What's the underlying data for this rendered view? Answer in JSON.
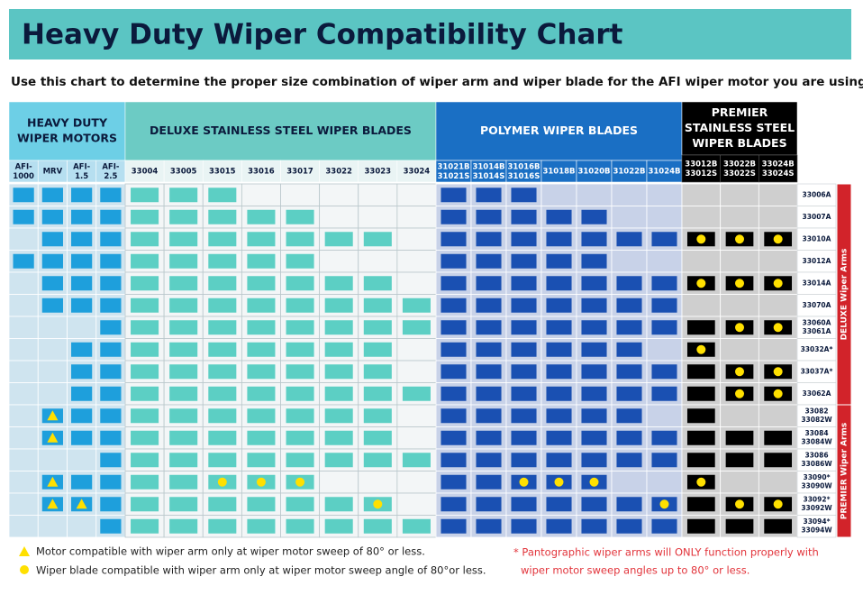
{
  "header": {
    "title": "Heavy Duty Wiper Compatibility Chart",
    "subtitle": "Use this chart to determine the proper size combination of wiper arm and wiper blade for the AFI  wiper motor you are using"
  },
  "table": {
    "groups": [
      {
        "label": [
          "HEAVY DUTY",
          "WIPER MOTORS"
        ],
        "columns": [
          [
            "AFI-",
            "1000"
          ],
          [
            "MRV"
          ],
          [
            "AFI-",
            "1.5"
          ],
          [
            "AFI-",
            "2.5"
          ]
        ]
      },
      {
        "label": [
          "DELUXE STAINLESS STEEL WIPER BLADES"
        ],
        "columns": [
          [
            "33004"
          ],
          [
            "33005"
          ],
          [
            "33015"
          ],
          [
            "33016"
          ],
          [
            "33017"
          ],
          [
            "33022"
          ],
          [
            "33023"
          ],
          [
            "33024"
          ]
        ]
      },
      {
        "label": [
          "POLYMER WIPER BLADES"
        ],
        "columns": [
          [
            "31021B",
            "31021S"
          ],
          [
            "31014B",
            "31014S"
          ],
          [
            "31016B",
            "31016S"
          ],
          [
            "31018B"
          ],
          [
            "31020B"
          ],
          [
            "31022B"
          ],
          [
            "31024B"
          ]
        ]
      },
      {
        "label": [
          "PREMIER",
          "STAINLESS STEEL",
          "WIPER BLADES"
        ],
        "columns": [
          [
            "33012B",
            "33012S"
          ],
          [
            "33022B",
            "33022S"
          ],
          [
            "33024B",
            "33024S"
          ]
        ]
      }
    ],
    "sections": [
      {
        "label": "DELUXE Wiper Arms",
        "rows": [
          {
            "arm": [
              "33006A"
            ],
            "cells": [
              "1111",
              "11100000",
              "1110000",
              "000"
            ]
          },
          {
            "arm": [
              "33007A"
            ],
            "cells": [
              "1111",
              "11111000",
              "1111100",
              "000"
            ]
          },
          {
            "arm": [
              "33010A"
            ],
            "cells": [
              "0111",
              "11111110",
              "1111111",
              "ccc"
            ]
          },
          {
            "arm": [
              "33012A"
            ],
            "cells": [
              "1111",
              "11111000",
              "1111100",
              "000"
            ]
          },
          {
            "arm": [
              "33014A"
            ],
            "cells": [
              "0111",
              "11111110",
              "1111111",
              "ccc"
            ]
          },
          {
            "arm": [
              "33070A"
            ],
            "cells": [
              "0111",
              "11111111",
              "1111111",
              "000"
            ]
          },
          {
            "arm": [
              "33060A",
              "33061A"
            ],
            "cells": [
              "0001",
              "11111111",
              "1111111",
              "1cc"
            ]
          },
          {
            "arm": [
              "33032A*"
            ],
            "cells": [
              "0011",
              "11111110",
              "1111110",
              "c00"
            ]
          },
          {
            "arm": [
              "33037A*"
            ],
            "cells": [
              "0011",
              "11111110",
              "1111111",
              "1cc"
            ]
          },
          {
            "arm": [
              "33062A"
            ],
            "cells": [
              "0011",
              "11111111",
              "1111111",
              "1cc"
            ]
          }
        ]
      },
      {
        "label": "PREMIER Wiper Arms",
        "rows": [
          {
            "arm": [
              "33082",
              "33082W"
            ],
            "cells": [
              "0t11",
              "11111110",
              "1111110",
              "100"
            ]
          },
          {
            "arm": [
              "33084",
              "33084W"
            ],
            "cells": [
              "0t11",
              "11111110",
              "1111111",
              "111"
            ]
          },
          {
            "arm": [
              "33086",
              "33086W"
            ],
            "cells": [
              "0001",
              "11111111",
              "1111111",
              "111"
            ]
          },
          {
            "arm": [
              "33090*",
              "33090W"
            ],
            "cells": [
              "0t11",
              "11ccc000",
              "11ccc00",
              "c00"
            ]
          },
          {
            "arm": [
              "33092*",
              "33092W"
            ],
            "cells": [
              "0tt1",
              "111111c0",
              "111111c",
              "1cc"
            ]
          },
          {
            "arm": [
              "33094*",
              "33094W"
            ],
            "cells": [
              "0001",
              "11111111",
              "1111111",
              "111"
            ]
          }
        ]
      }
    ]
  },
  "legend": {
    "triangle": "Motor compatible with wiper arm only at wiper motor sweep of 80° or less.",
    "circle": "Wiper blade compatible with wiper arm only at wiper motor sweep angle of 80°or less.",
    "note": [
      "* Pantographic wiper arms will ONLY  function properly with",
      "wiper motor sweep angles up to 80° or less."
    ]
  }
}
